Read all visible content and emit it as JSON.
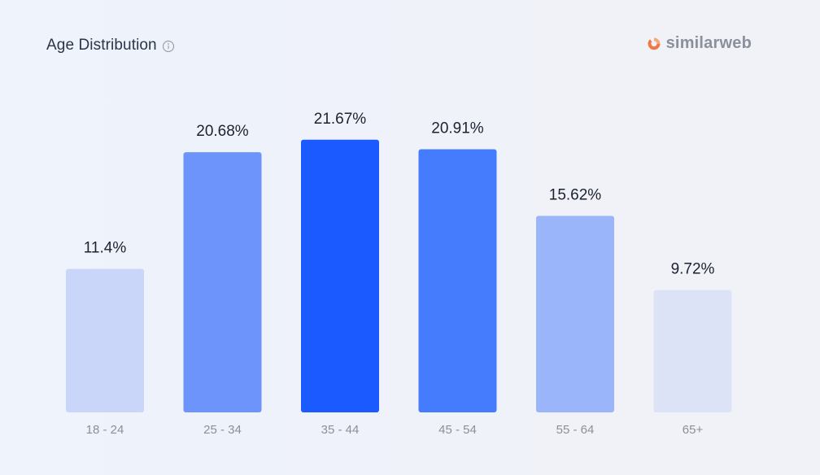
{
  "header": {
    "title": "Age Distribution",
    "info_icon": "info-icon"
  },
  "brand": {
    "name": "similarweb",
    "logo_icon": "similarweb-logo-icon"
  },
  "chart_data": {
    "type": "bar",
    "categories": [
      "18 - 24",
      "25 - 34",
      "35 - 44",
      "45 - 54",
      "55 - 64",
      "65+"
    ],
    "values": [
      11.4,
      20.68,
      21.67,
      20.91,
      15.62,
      9.72
    ],
    "value_labels": [
      "11.4%",
      "20.68%",
      "21.67%",
      "20.91%",
      "15.62%",
      "9.72%"
    ],
    "colors": [
      "#c9d5f9",
      "#6d94fb",
      "#1b5afe",
      "#447cfd",
      "#9bb5fb",
      "#dde3f7"
    ],
    "ylim": [
      0,
      25
    ],
    "grid": false,
    "legend": "none"
  }
}
